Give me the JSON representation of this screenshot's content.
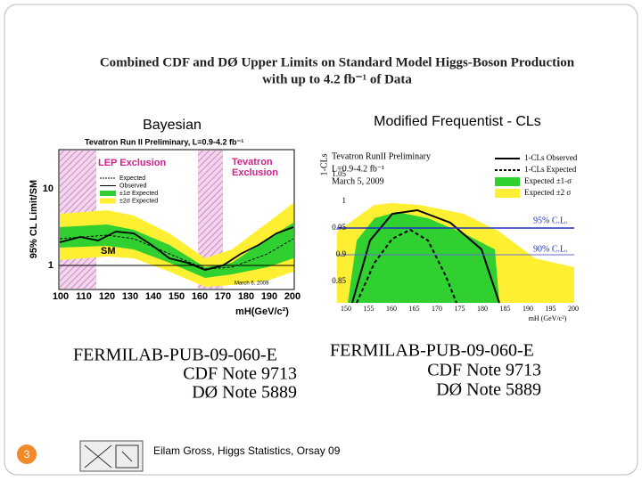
{
  "slide": {
    "title": {
      "line1": "Combined CDF and DØ Upper Limits on Standard Model Higgs-Boson Production",
      "line2": "with up to 4.2 fb⁻¹ of Data"
    },
    "left_heading": "Bayesian",
    "right_heading": "Modified Frequentist - CLs",
    "left_plot": {
      "title": "Tevatron Run II Preliminary, L=0.9-4.2 fb⁻¹",
      "y_label": "95% CL Limit/SM",
      "y_ticks": [
        "10",
        "1"
      ],
      "x_ticks": [
        "100",
        "110",
        "120",
        "130",
        "140",
        "150",
        "160",
        "170",
        "180",
        "190",
        "200"
      ],
      "x_label": "mH(GeV/c²)",
      "lep": "LEP Exclusion",
      "tevatron": [
        "Tevatron",
        "Exclusion"
      ],
      "legend": [
        "Expected",
        "Observed",
        "±1σ Expected",
        "±2σ Expected"
      ],
      "sm": "SM",
      "date": "March 6, 2009"
    },
    "right_plot": {
      "y_label": "1-CLs",
      "y_ticks": [
        "1.05",
        "1",
        "0.95",
        "0.9",
        "0.85"
      ],
      "x_ticks": [
        "150",
        "155",
        "160",
        "165",
        "170",
        "175",
        "180",
        "185",
        "190",
        "195",
        "200"
      ],
      "x_label": "mH (GeV/c²)",
      "info": [
        "Tevatron RunII Preliminary",
        "L=0.9-4.2 fb⁻¹",
        "March 5, 2009"
      ],
      "legend": [
        "1-CLs Observed",
        "1-CLs Expected",
        "Expected ±1-σ",
        "Expected ±2 σ"
      ],
      "cl95": "95% C.L.",
      "cl90": "90% C.L."
    },
    "notes_left": [
      "FERMILAB-PUB-09-060-E",
      "CDF Note 9713",
      "DØ Note 5889"
    ],
    "notes_right": [
      "FERMILAB-PUB-09-060-E",
      "CDF Note 9713",
      "DØ Note 5889"
    ],
    "page_number": "3",
    "footer": "Eilam Gross, Higgs Statistics, Orsay 09"
  }
}
